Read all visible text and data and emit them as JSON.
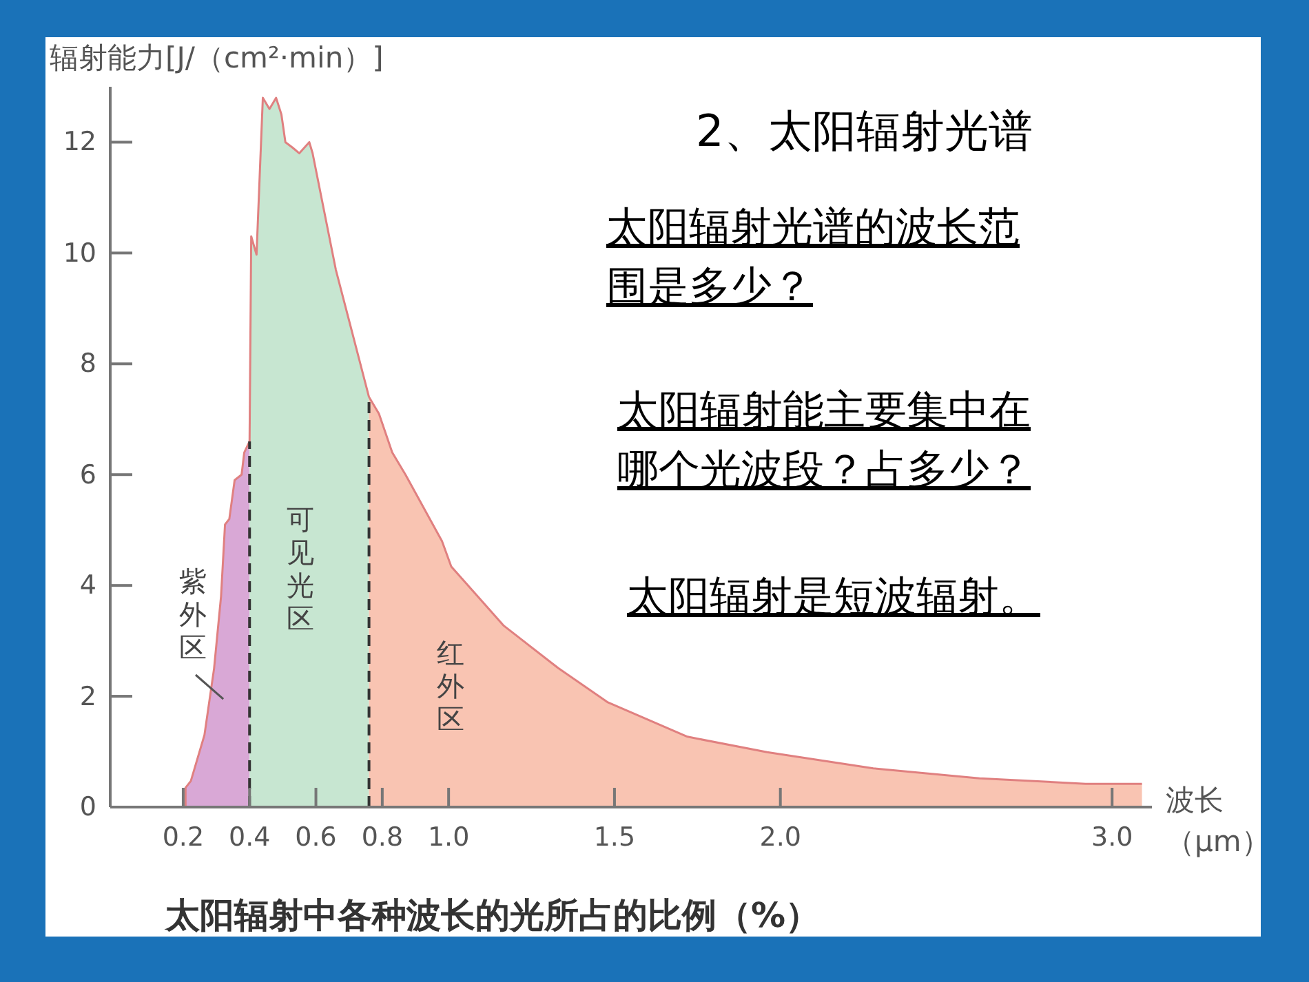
{
  "chart_data": {
    "type": "area",
    "title": "2、太阳辐射光谱",
    "ylabel": "辐射能力[J/（cm²·min）]",
    "xlabel": "波长（μm）",
    "annotations": [
      "太阳辐射光谱的波长范围是多少？",
      "太阳辐射能主要集中在哪个光波段？占多少？",
      "太阳辐射是短波辐射。",
      "太阳辐射中各种波长的光所占的比例（%）"
    ],
    "xlim": [
      -0.02,
      3.12
    ],
    "ylim": [
      0,
      13
    ],
    "xticks": [
      0.2,
      0.4,
      0.6,
      0.8,
      {
        "value": 1.0,
        "label": "1.0"
      },
      1.5,
      {
        "value": 2.0,
        "label": "2.0"
      },
      {
        "value": 3.0,
        "label": "3.0"
      }
    ],
    "yticks": [
      0,
      2,
      4,
      6,
      8,
      10,
      12
    ],
    "series": [
      {
        "name": "紫外区",
        "color": "#d9a8d6",
        "x": [
          0.207,
          0.207,
          0.223,
          0.264,
          0.293,
          0.314,
          0.326,
          0.339,
          0.355,
          0.376,
          0.384,
          0.4
        ],
        "values": [
          0,
          0.35,
          0.47,
          1.3,
          2.5,
          3.8,
          5.1,
          5.2,
          5.9,
          6.0,
          6.4,
          6.6
        ]
      },
      {
        "name": "可见光区",
        "color": "#c7e6d1",
        "x": [
          0.4,
          0.405,
          0.421,
          0.44,
          0.46,
          0.48,
          0.496,
          0.508,
          0.53,
          0.55,
          0.58,
          0.59,
          0.66,
          0.76
        ],
        "values": [
          6.6,
          10.3,
          9.97,
          12.8,
          12.6,
          12.8,
          12.5,
          12.0,
          11.9,
          11.8,
          12.0,
          11.8,
          9.7,
          7.4
        ]
      },
      {
        "name": "红外区",
        "color": "#f9c4b2",
        "x": [
          0.76,
          0.79,
          0.83,
          0.87,
          0.98,
          1.008,
          1.165,
          1.33,
          1.48,
          1.72,
          1.96,
          2.28,
          2.6,
          2.92,
          3.09
        ],
        "values": [
          7.4,
          7.1,
          6.4,
          6.0,
          4.8,
          4.34,
          3.28,
          2.51,
          1.89,
          1.27,
          0.99,
          0.7,
          0.52,
          0.42,
          0.42
        ]
      }
    ],
    "ref_lines": [
      {
        "axis": "x",
        "value": 0.4,
        "color": "#333333",
        "line_style": "dashed"
      },
      {
        "axis": "x",
        "value": 0.76,
        "color": "#333333",
        "line_style": "dashed"
      }
    ]
  }
}
